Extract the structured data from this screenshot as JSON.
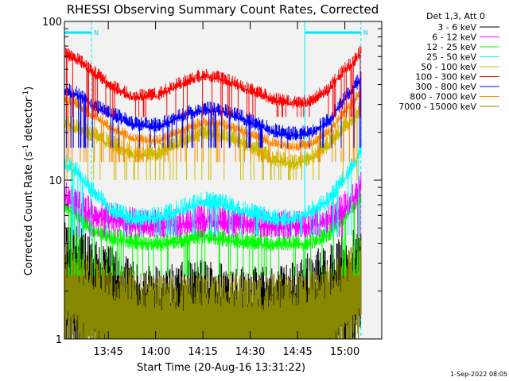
{
  "chart_data": {
    "type": "line",
    "title": "RHESSI Observing Summary Count Rates, Corrected",
    "xlabel": "Start Time (20-Aug-16 13:31:22)",
    "ylabel_main": "Corrected Count Rate (s",
    "ylabel_sup1": "-1",
    "ylabel_mid": " detector",
    "ylabel_sup2": "-1",
    "ylabel_end": ")",
    "yscale": "log",
    "ylim": [
      1,
      100
    ],
    "xlim": [
      "13:31:22",
      "15:12:00"
    ],
    "yticks": [
      {
        "value": 1,
        "label": "1"
      },
      {
        "value": 10,
        "label": "10"
      },
      {
        "value": 100,
        "label": "100"
      }
    ],
    "xticks": [
      {
        "minutes": 13.9,
        "label": "13:45"
      },
      {
        "minutes": 28.9,
        "label": "14:00"
      },
      {
        "minutes": 43.9,
        "label": "14:15"
      },
      {
        "minutes": 58.9,
        "label": "14:30"
      },
      {
        "minutes": 73.9,
        "label": "14:45"
      },
      {
        "minutes": 88.9,
        "label": "15:00"
      }
    ],
    "legend_title": "Det 1,3, Att 0",
    "legend_position": "top-right",
    "timestamp": "1-Sep-2022 08:05",
    "night_marker": "N",
    "data_start": 0,
    "data_end": 94,
    "night_periods": [
      {
        "start": 0,
        "end": 8.6
      },
      {
        "start": 76.2,
        "end": 94
      }
    ],
    "profile_minutes": [
      0,
      4,
      8.6,
      15,
      22,
      30,
      38,
      44,
      50,
      58,
      66,
      72,
      78,
      84,
      88,
      92,
      94
    ],
    "series": [
      {
        "name": "3 - 6 keV",
        "color": "#000000",
        "baseline": 2.7,
        "noise": 0.45,
        "values": [
          3.0,
          2.9,
          2.6,
          2.1,
          1.7,
          1.6,
          1.7,
          1.8,
          1.7,
          1.6,
          1.6,
          1.7,
          2.0,
          2.2,
          2.5,
          2.7,
          2.8
        ]
      },
      {
        "name": "6 - 12 keV",
        "color": "#ff00ff",
        "baseline": 4.4,
        "noise": 0.1,
        "values": [
          7.8,
          6.8,
          6.0,
          5.6,
          5.2,
          5.0,
          5.3,
          5.5,
          5.4,
          5.2,
          5.0,
          5.0,
          5.1,
          5.4,
          6.3,
          7.6,
          8.8
        ]
      },
      {
        "name": "12 - 25 keV",
        "color": "#00ff00",
        "baseline": 2.5,
        "noise": 0.06,
        "values": [
          6.8,
          5.8,
          4.8,
          4.3,
          4.0,
          3.9,
          4.1,
          4.4,
          4.2,
          4.0,
          3.9,
          3.9,
          4.0,
          4.5,
          5.5,
          6.8,
          7.8
        ]
      },
      {
        "name": "25 - 50 keV",
        "color": "#00ffff",
        "baseline": 4.5,
        "noise": 0.06,
        "values": [
          12.5,
          11.0,
          8.5,
          6.3,
          5.6,
          5.8,
          6.6,
          7.3,
          7.0,
          6.2,
          5.6,
          5.6,
          6.2,
          7.4,
          9.5,
          12.5,
          15.5
        ]
      },
      {
        "name": "50 - 100 keV",
        "color": "#ccbb00",
        "baseline": 10.0,
        "noise": 0.06,
        "values": [
          22.5,
          21.0,
          19.0,
          16.5,
          14.2,
          14.5,
          17.5,
          19.5,
          18.8,
          16.5,
          13.2,
          12.5,
          13.5,
          16.5,
          20.5,
          24.5,
          27.5
        ]
      },
      {
        "name": "100 - 300 keV",
        "color": "#ff0000",
        "baseline": 25.0,
        "noise": 0.045,
        "values": [
          61.0,
          57.0,
          48.0,
          38.0,
          33.0,
          34.0,
          41.0,
          45.0,
          43.0,
          37.0,
          32.0,
          30.0,
          31.0,
          37.0,
          47.0,
          56.0,
          63.0
        ]
      },
      {
        "name": "300 - 800 keV",
        "color": "#0000ff",
        "baseline": 16.0,
        "noise": 0.05,
        "values": [
          36.5,
          34.5,
          29.5,
          25.5,
          22.0,
          21.5,
          25.5,
          27.5,
          27.0,
          23.5,
          20.0,
          19.0,
          19.5,
          23.5,
          30.0,
          38.5,
          42.5
        ]
      },
      {
        "name": "800 - 7000 keV",
        "color": "#ff8800",
        "baseline": 13.0,
        "noise": 0.035,
        "values": [
          31.5,
          30.0,
          25.5,
          21.0,
          18.0,
          17.5,
          20.5,
          23.0,
          22.5,
          19.5,
          17.0,
          16.0,
          16.5,
          20.0,
          25.5,
          31.5,
          36.0
        ]
      },
      {
        "name": "7000 - 15000 keV",
        "color": "#888800",
        "baseline": 1.3,
        "noise": 0.4,
        "values": [
          2.4,
          2.3,
          2.0,
          1.7,
          1.6,
          1.5,
          1.5,
          1.6,
          1.6,
          1.5,
          1.5,
          1.5,
          1.6,
          1.8,
          2.0,
          2.3,
          2.5
        ]
      }
    ]
  }
}
